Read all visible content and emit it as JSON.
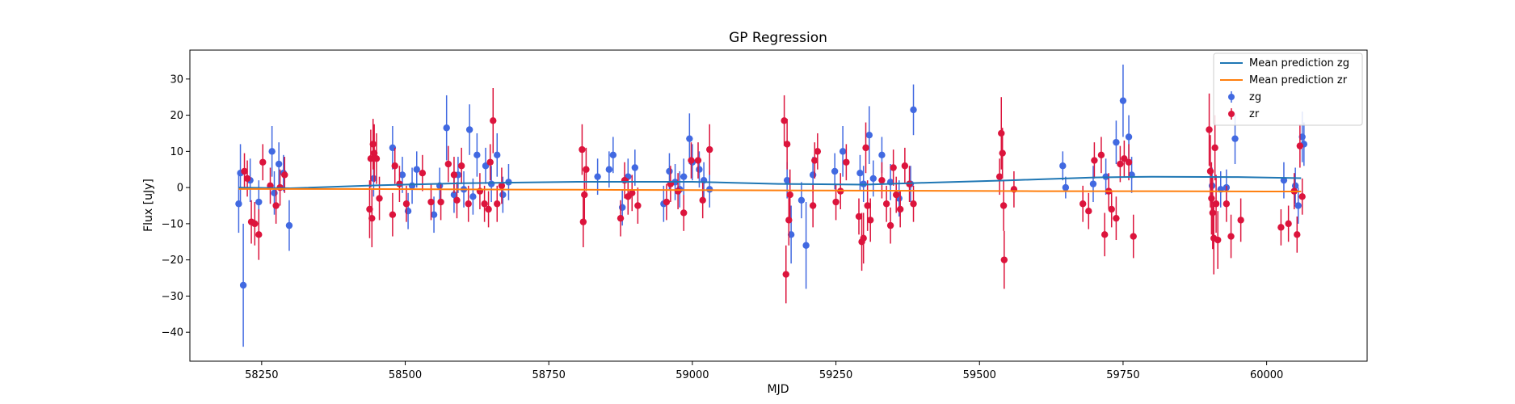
{
  "chart_data": {
    "type": "scatter",
    "title": "GP Regression",
    "xlabel": "MJD",
    "ylabel": "Flux [uJy]",
    "xlim": [
      58125,
      60175
    ],
    "ylim": [
      -48,
      38
    ],
    "xticks": [
      58250,
      58500,
      58750,
      59000,
      59250,
      59500,
      59750,
      60000
    ],
    "yticks": [
      -40,
      -30,
      -20,
      -10,
      0,
      10,
      20,
      30
    ],
    "legend_position": "top-right",
    "colors": {
      "mean_zg": "#1f77b4",
      "mean_zr": "#ff7f0e",
      "zg": "#4169e1",
      "zr": "#dc143c"
    },
    "legend": [
      "Mean prediction zg",
      "Mean prediction zr",
      "zg",
      "zr"
    ],
    "mean_prediction_zg": {
      "name": "Mean prediction zg",
      "x": [
        58210,
        58300,
        58450,
        58600,
        58800,
        59000,
        59150,
        59300,
        59400,
        59550,
        59700,
        59800,
        59950,
        60060
      ],
      "y": [
        0.0,
        -0.2,
        0.6,
        1.2,
        1.6,
        1.6,
        1.0,
        0.8,
        1.3,
        2.0,
        2.8,
        3.0,
        2.9,
        2.6
      ]
    },
    "mean_prediction_zr": {
      "name": "Mean prediction zr",
      "x": [
        58210,
        58400,
        58600,
        58800,
        59000,
        59200,
        59400,
        59600,
        59800,
        60000,
        60060
      ],
      "y": [
        -0.4,
        -0.4,
        -0.5,
        -0.6,
        -0.7,
        -0.8,
        -0.9,
        -1.0,
        -1.0,
        -1.1,
        -1.1
      ]
    },
    "series": [
      {
        "name": "zg",
        "points": [
          [
            58210,
            -4.5,
            8
          ],
          [
            58213,
            4.0,
            8
          ],
          [
            58218,
            -27.0,
            17
          ],
          [
            58230,
            2.0,
            6
          ],
          [
            58245,
            -4.0,
            6
          ],
          [
            58268,
            10.0,
            7
          ],
          [
            58272,
            -1.5,
            6
          ],
          [
            58280,
            6.5,
            6
          ],
          [
            58288,
            4.0,
            5
          ],
          [
            58298,
            -10.5,
            7
          ],
          [
            58445,
            2.5,
            5
          ],
          [
            58478,
            11.0,
            6
          ],
          [
            58495,
            3.5,
            5
          ],
          [
            58505,
            -6.5,
            5
          ],
          [
            58512,
            0.5,
            5
          ],
          [
            58520,
            5.0,
            5
          ],
          [
            58550,
            -7.5,
            5
          ],
          [
            58560,
            0.5,
            5
          ],
          [
            58572,
            16.5,
            9
          ],
          [
            58585,
            -2.0,
            5
          ],
          [
            58592,
            3.5,
            5
          ],
          [
            58602,
            -0.5,
            5
          ],
          [
            58612,
            16.0,
            7
          ],
          [
            58618,
            -2.5,
            5
          ],
          [
            58625,
            9.0,
            6
          ],
          [
            58640,
            6.0,
            5
          ],
          [
            58650,
            1.0,
            5
          ],
          [
            58660,
            9.0,
            6
          ],
          [
            58670,
            -2.0,
            5
          ],
          [
            58680,
            1.5,
            5
          ],
          [
            58835,
            3.0,
            5
          ],
          [
            58855,
            5.0,
            5
          ],
          [
            58862,
            9.0,
            5
          ],
          [
            58878,
            -5.5,
            5
          ],
          [
            58888,
            3.0,
            5
          ],
          [
            58900,
            5.5,
            5
          ],
          [
            58950,
            -4.5,
            5
          ],
          [
            58960,
            4.5,
            5
          ],
          [
            58970,
            1.5,
            5
          ],
          [
            58978,
            -0.5,
            5
          ],
          [
            58985,
            3.0,
            5
          ],
          [
            58995,
            13.5,
            7
          ],
          [
            59000,
            7.0,
            5
          ],
          [
            59012,
            5.0,
            5
          ],
          [
            59020,
            2.0,
            5
          ],
          [
            59030,
            -0.5,
            5
          ],
          [
            59165,
            2.0,
            5
          ],
          [
            59172,
            -13.0,
            8
          ],
          [
            59190,
            -3.5,
            5
          ],
          [
            59198,
            -16.0,
            12
          ],
          [
            59210,
            3.5,
            5
          ],
          [
            59248,
            4.5,
            5
          ],
          [
            59262,
            10.0,
            7
          ],
          [
            59292,
            4.0,
            5
          ],
          [
            59298,
            1.0,
            5
          ],
          [
            59308,
            14.5,
            8
          ],
          [
            59315,
            2.5,
            5
          ],
          [
            59330,
            9.0,
            5
          ],
          [
            59345,
            1.5,
            5
          ],
          [
            59360,
            -3.0,
            5
          ],
          [
            59380,
            1.0,
            5
          ],
          [
            59385,
            21.5,
            7
          ],
          [
            59645,
            6.0,
            4
          ],
          [
            59650,
            0.0,
            3
          ],
          [
            59698,
            1.0,
            5
          ],
          [
            59720,
            3.0,
            5
          ],
          [
            59738,
            12.5,
            6
          ],
          [
            59750,
            24.0,
            10
          ],
          [
            59760,
            14.0,
            6
          ],
          [
            59765,
            3.5,
            5
          ],
          [
            59905,
            0.5,
            5
          ],
          [
            59920,
            -0.5,
            5
          ],
          [
            59930,
            0.0,
            5
          ],
          [
            59945,
            13.5,
            7
          ],
          [
            60030,
            2.0,
            5
          ],
          [
            60050,
            0.5,
            5
          ],
          [
            60055,
            -5.0,
            5
          ],
          [
            60062,
            14.0,
            7
          ],
          [
            60065,
            12.0,
            6
          ]
        ]
      },
      {
        "name": "zr",
        "points": [
          [
            58220,
            4.5,
            5
          ],
          [
            58225,
            2.5,
            5
          ],
          [
            58232,
            -9.5,
            6
          ],
          [
            58238,
            -10.0,
            6
          ],
          [
            58245,
            -13.0,
            7
          ],
          [
            58252,
            7.0,
            5
          ],
          [
            58265,
            0.5,
            5
          ],
          [
            58275,
            -5.0,
            5
          ],
          [
            58282,
            0.0,
            5
          ],
          [
            58290,
            3.5,
            5
          ],
          [
            58438,
            -6.0,
            8
          ],
          [
            58440,
            8.0,
            8
          ],
          [
            58442,
            -8.5,
            8
          ],
          [
            58444,
            12.0,
            7
          ],
          [
            58446,
            9.5,
            8
          ],
          [
            58450,
            8.0,
            7
          ],
          [
            58455,
            -3.0,
            6
          ],
          [
            58478,
            -7.5,
            6
          ],
          [
            58482,
            6.0,
            5
          ],
          [
            58490,
            1.0,
            5
          ],
          [
            58502,
            -4.5,
            5
          ],
          [
            58530,
            4.0,
            5
          ],
          [
            58545,
            -4.0,
            5
          ],
          [
            58562,
            -4.0,
            5
          ],
          [
            58575,
            6.5,
            5
          ],
          [
            58585,
            3.5,
            5
          ],
          [
            58590,
            -3.5,
            5
          ],
          [
            58598,
            6.0,
            5
          ],
          [
            58610,
            -4.5,
            5
          ],
          [
            58630,
            -1.0,
            5
          ],
          [
            58638,
            -4.5,
            5
          ],
          [
            58645,
            -6.0,
            5
          ],
          [
            58648,
            7.0,
            5
          ],
          [
            58653,
            18.5,
            9
          ],
          [
            58660,
            -4.5,
            5
          ],
          [
            58668,
            0.5,
            5
          ],
          [
            58808,
            10.5,
            7
          ],
          [
            58810,
            -9.5,
            7
          ],
          [
            58812,
            -2.0,
            7
          ],
          [
            58815,
            5.0,
            6
          ],
          [
            58875,
            -8.5,
            5
          ],
          [
            58882,
            2.0,
            5
          ],
          [
            58888,
            -2.5,
            5
          ],
          [
            58895,
            -1.5,
            5
          ],
          [
            58905,
            -5.0,
            5
          ],
          [
            58955,
            -4.0,
            5
          ],
          [
            58962,
            1.0,
            5
          ],
          [
            58975,
            -1.0,
            5
          ],
          [
            58985,
            -7.0,
            5
          ],
          [
            58998,
            7.5,
            5
          ],
          [
            59010,
            7.5,
            5
          ],
          [
            59018,
            -3.5,
            5
          ],
          [
            59030,
            10.5,
            7
          ],
          [
            59160,
            18.5,
            7
          ],
          [
            59163,
            -24.0,
            8
          ],
          [
            59165,
            12.0,
            7
          ],
          [
            59168,
            -9.0,
            7
          ],
          [
            59170,
            -2.0,
            7
          ],
          [
            59210,
            -5.0,
            6
          ],
          [
            59213,
            7.5,
            5
          ],
          [
            59218,
            10.0,
            5
          ],
          [
            59250,
            -4.0,
            5
          ],
          [
            59258,
            -1.0,
            5
          ],
          [
            59268,
            7.0,
            5
          ],
          [
            59290,
            -8.0,
            5
          ],
          [
            59295,
            -15.0,
            8
          ],
          [
            59298,
            -14.0,
            7
          ],
          [
            59302,
            11.0,
            7
          ],
          [
            59305,
            -5.0,
            7
          ],
          [
            59310,
            -9.0,
            6
          ],
          [
            59330,
            2.0,
            5
          ],
          [
            59338,
            -4.5,
            5
          ],
          [
            59345,
            -10.5,
            5
          ],
          [
            59350,
            5.5,
            5
          ],
          [
            59355,
            -2.0,
            5
          ],
          [
            59362,
            -6.0,
            5
          ],
          [
            59370,
            6.0,
            5
          ],
          [
            59378,
            1.0,
            5
          ],
          [
            59385,
            -4.5,
            5
          ],
          [
            59535,
            3.0,
            5
          ],
          [
            59538,
            15.0,
            10
          ],
          [
            59540,
            9.5,
            7
          ],
          [
            59542,
            -5.0,
            7
          ],
          [
            59543,
            -20.0,
            8
          ],
          [
            59560,
            -0.5,
            5
          ],
          [
            59680,
            -4.5,
            5
          ],
          [
            59690,
            -6.5,
            5
          ],
          [
            59700,
            7.5,
            5
          ],
          [
            59712,
            9.0,
            5
          ],
          [
            59718,
            -13.0,
            6
          ],
          [
            59725,
            -1.0,
            5
          ],
          [
            59730,
            -6.0,
            5
          ],
          [
            59738,
            -8.5,
            6
          ],
          [
            59745,
            6.5,
            5
          ],
          [
            59752,
            8.0,
            5
          ],
          [
            59760,
            7.0,
            5
          ],
          [
            59768,
            -13.5,
            6
          ],
          [
            59900,
            16.0,
            10
          ],
          [
            59902,
            4.5,
            10
          ],
          [
            59904,
            -3.0,
            10
          ],
          [
            59906,
            -7.0,
            10
          ],
          [
            59908,
            -14.0,
            10
          ],
          [
            59910,
            11.0,
            9
          ],
          [
            59912,
            -4.5,
            8
          ],
          [
            59915,
            -14.5,
            8
          ],
          [
            59930,
            -4.5,
            5
          ],
          [
            59938,
            -13.5,
            6
          ],
          [
            59955,
            -9.0,
            6
          ],
          [
            60025,
            -11.0,
            5
          ],
          [
            60038,
            -10.0,
            5
          ],
          [
            60048,
            -1.0,
            5
          ],
          [
            60053,
            -13.0,
            5
          ],
          [
            60058,
            11.5,
            6
          ],
          [
            60062,
            -2.5,
            5
          ]
        ]
      }
    ]
  }
}
